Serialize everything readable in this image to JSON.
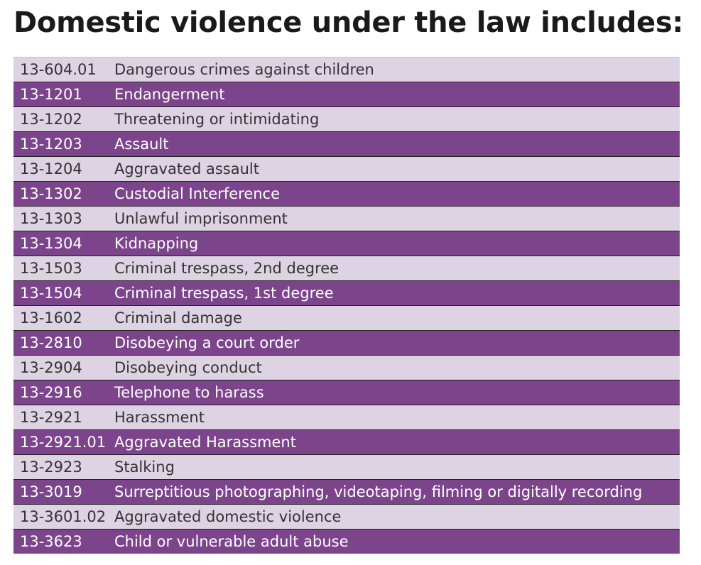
{
  "title": "Domestic violence under the law includes:",
  "colors": {
    "row_light": "#ddd3e3",
    "row_dark": "#7c458b",
    "text_dark": "#333333",
    "text_light": "#ffffff"
  },
  "rows": [
    {
      "code": "13-604.01",
      "description": "Dangerous crimes against children"
    },
    {
      "code": "13-1201",
      "description": "Endangerment"
    },
    {
      "code": "13-1202",
      "description": "Threatening or intimidating"
    },
    {
      "code": "13-1203",
      "description": "Assault"
    },
    {
      "code": "13-1204",
      "description": "Aggravated assault"
    },
    {
      "code": "13-1302",
      "description": "Custodial Interference"
    },
    {
      "code": "13-1303",
      "description": "Unlawful imprisonment"
    },
    {
      "code": "13-1304",
      "description": "Kidnapping"
    },
    {
      "code": "13-1503",
      "description": "Criminal trespass, 2nd degree"
    },
    {
      "code": "13-1504",
      "description": "Criminal trespass, 1st degree"
    },
    {
      "code": "13-1602",
      "description": "Criminal damage"
    },
    {
      "code": "13-2810",
      "description": "Disobeying a court order"
    },
    {
      "code": "13-2904",
      "description": "Disobeying conduct"
    },
    {
      "code": "13-2916",
      "description": "Telephone to harass"
    },
    {
      "code": "13-2921",
      "description": "Harassment"
    },
    {
      "code": "13-2921.01",
      "description": "Aggravated Harassment"
    },
    {
      "code": "13-2923",
      "description": "Stalking"
    },
    {
      "code": "13-3019",
      "description": "Surreptitious photographing, videotaping, filming or digitally recording"
    },
    {
      "code": "13-3601.02",
      "description": "Aggravated domestic violence"
    },
    {
      "code": "13-3623",
      "description": "Child or vulnerable adult abuse"
    }
  ]
}
